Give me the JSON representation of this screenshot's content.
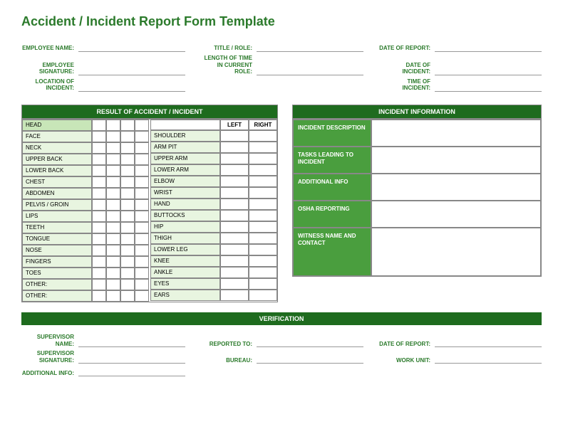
{
  "title": "Accident / Incident Report Form Template",
  "colors": {
    "primary": "#1e6b1e",
    "secondary": "#4a9e3e",
    "rowLight": "#e8f5e0",
    "rowMed": "#c8e6b8",
    "labelText": "#2b7a2b"
  },
  "headerFields": {
    "col1": [
      {
        "label": "EMPLOYEE NAME:"
      },
      {
        "label": "EMPLOYEE SIGNATURE:"
      },
      {
        "label": "LOCATION OF INCIDENT:"
      }
    ],
    "col2": [
      {
        "label": "TITLE / ROLE:"
      },
      {
        "label": "LENGTH OF TIME IN CURRENT ROLE:"
      },
      {
        "label": ""
      }
    ],
    "col3": [
      {
        "label": "DATE OF REPORT:"
      },
      {
        "label": "DATE OF INCIDENT:"
      },
      {
        "label": "TIME OF INCIDENT:"
      }
    ]
  },
  "resultSection": {
    "header": "RESULT OF ACCIDENT / INCIDENT",
    "leftLabel": "LEFT",
    "rightLabel": "RIGHT",
    "col1": [
      "HEAD",
      "FACE",
      "NECK",
      "UPPER BACK",
      "LOWER BACK",
      "CHEST",
      "ABDOMEN",
      "PELVIS / GROIN",
      "LIPS",
      "TEETH",
      "TONGUE",
      "NOSE",
      "FINGERS",
      "TOES",
      "OTHER:",
      "OTHER:"
    ],
    "col2": [
      "",
      "SHOULDER",
      "ARM PIT",
      "UPPER ARM",
      "LOWER ARM",
      "ELBOW",
      "WRIST",
      "HAND",
      "BUTTOCKS",
      "HIP",
      "THIGH",
      "LOWER LEG",
      "KNEE",
      "ANKLE",
      "EYES",
      "EARS"
    ]
  },
  "incidentSection": {
    "header": "INCIDENT INFORMATION",
    "rows": [
      {
        "label": "INCIDENT DESCRIPTION",
        "tall": false
      },
      {
        "label": "TASKS LEADING TO INCIDENT",
        "tall": false
      },
      {
        "label": "ADDITIONAL INFO",
        "tall": false
      },
      {
        "label": "OSHA REPORTING",
        "tall": false
      },
      {
        "label": "WITNESS NAME AND CONTACT",
        "tall": true
      }
    ]
  },
  "verification": {
    "header": "VERIFICATION",
    "col1": [
      {
        "label": "SUPERVISOR NAME:"
      },
      {
        "label": "SUPERVISOR SIGNATURE:"
      },
      {
        "label": "ADDITIONAL INFO:"
      }
    ],
    "col2": [
      {
        "label": "REPORTED TO:"
      },
      {
        "label": "BUREAU:"
      },
      {
        "label": ""
      }
    ],
    "col3": [
      {
        "label": "DATE OF REPORT:"
      },
      {
        "label": "WORK UNIT:"
      },
      {
        "label": ""
      }
    ]
  }
}
